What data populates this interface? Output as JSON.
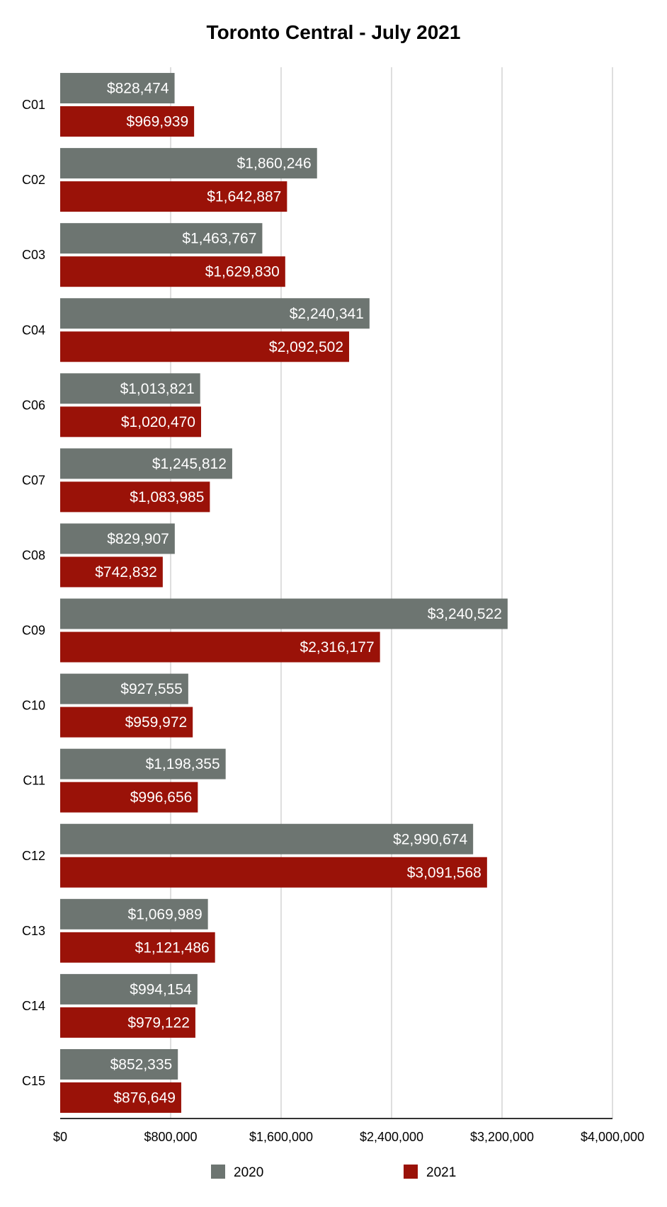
{
  "chart_data": {
    "type": "bar",
    "orientation": "horizontal",
    "title": "Toronto Central - July 2021",
    "xlabel": "",
    "ylabel": "",
    "xlim": [
      0,
      4000000
    ],
    "x_ticks": [
      0,
      800000,
      1600000,
      2400000,
      3200000,
      4000000
    ],
    "x_tick_labels": [
      "$0",
      "$800,000",
      "$1,600,000",
      "$2,400,000",
      "$3,200,000",
      "$4,000,000"
    ],
    "grid": true,
    "legend_position": "bottom",
    "categories": [
      "C01",
      "C02",
      "C03",
      "C04",
      "C06",
      "C07",
      "C08",
      "C09",
      "C10",
      "C11",
      "C12",
      "C13",
      "C14",
      "C15"
    ],
    "series": [
      {
        "name": "2020",
        "color": "#6d7571",
        "values": [
          828474,
          1860246,
          1463767,
          2240341,
          1013821,
          1245812,
          829907,
          3240522,
          927555,
          1198355,
          2990674,
          1069989,
          994154,
          852335
        ],
        "labels": [
          "$828,474",
          "$1,860,246",
          "$1,463,767",
          "$2,240,341",
          "$1,013,821",
          "$1,245,812",
          "$829,907",
          "$3,240,522",
          "$927,555",
          "$1,198,355",
          "$2,990,674",
          "$1,069,989",
          "$994,154",
          "$852,335"
        ]
      },
      {
        "name": "2021",
        "color": "#9a1208",
        "values": [
          969939,
          1642887,
          1629830,
          2092502,
          1020470,
          1083985,
          742832,
          2316177,
          959972,
          996656,
          3091568,
          1121486,
          979122,
          876649
        ],
        "labels": [
          "$969,939",
          "$1,642,887",
          "$1,629,830",
          "$2,092,502",
          "$1,020,470",
          "$1,083,985",
          "$742,832",
          "$2,316,177",
          "$959,972",
          "$996,656",
          "$3,091,568",
          "$1,121,486",
          "$979,122",
          "$876,649"
        ]
      }
    ]
  }
}
